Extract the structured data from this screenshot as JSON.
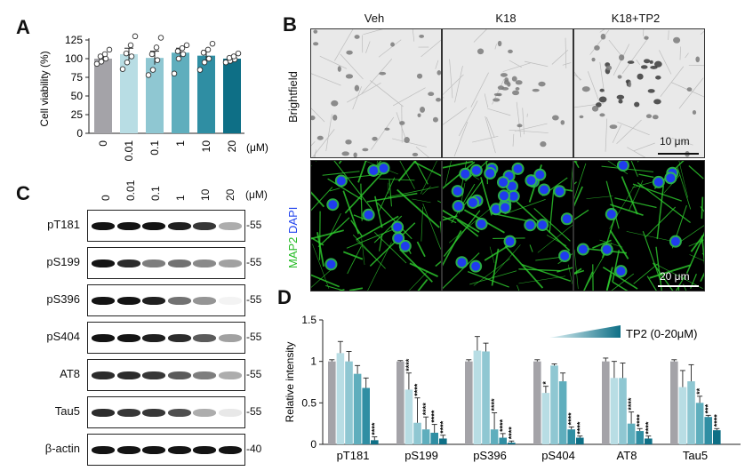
{
  "panels": {
    "a": "A",
    "b": "B",
    "c": "C",
    "d": "D"
  },
  "chart_a": {
    "type": "bar",
    "ylabel": "Cell viability (%)",
    "unit": "(μM)",
    "ylim": [
      0,
      125
    ],
    "yticks": [
      "0",
      "25",
      "50",
      "75",
      "100",
      "125"
    ],
    "categories": [
      "0",
      "0.01",
      "0.1",
      "1",
      "10",
      "20"
    ],
    "values": [
      100,
      106,
      101,
      108,
      104,
      100
    ],
    "errors": [
      5,
      8,
      9,
      6,
      7,
      3
    ],
    "points": [
      [
        93,
        96,
        100,
        103,
        106,
        112
      ],
      [
        86,
        95,
        103,
        107,
        118,
        130
      ],
      [
        78,
        85,
        98,
        106,
        115,
        128
      ],
      [
        80,
        100,
        106,
        110,
        114,
        118
      ],
      [
        85,
        95,
        100,
        108,
        112,
        120
      ],
      [
        95,
        97,
        99,
        101,
        103,
        107
      ]
    ],
    "colors": [
      "#a4a3a8",
      "#b8dde4",
      "#8fc7d2",
      "#5faebd",
      "#2f8ea3",
      "#0e6f86"
    ]
  },
  "panel_b": {
    "columns": [
      "Veh",
      "K18",
      "K18+TP2"
    ],
    "rows": [
      "Brightfield",
      "MAP2 DAPI"
    ],
    "row_label_1": "Brightfield",
    "row_label_2a": "MAP2",
    "row_label_2b": "DAPI",
    "scale_top": "10 μm",
    "scale_bottom": "20 μm",
    "map2_color": "#33cc33",
    "dapi_color": "#2244ee"
  },
  "panel_c": {
    "lanes": [
      "0",
      "0.01",
      "0.1",
      "1",
      "10",
      "20"
    ],
    "unit": "(μM)",
    "blots": [
      {
        "label": "pT181",
        "mw": "-55",
        "levels": [
          1.0,
          1.0,
          1.0,
          0.95,
          0.85,
          0.35
        ]
      },
      {
        "label": "pS199",
        "mw": "-55",
        "levels": [
          1.0,
          0.9,
          0.55,
          0.6,
          0.5,
          0.4
        ]
      },
      {
        "label": "pS396",
        "mw": "-55",
        "levels": [
          1.0,
          1.0,
          0.95,
          0.6,
          0.45,
          0.05
        ]
      },
      {
        "label": "pS404",
        "mw": "-55",
        "levels": [
          1.0,
          1.0,
          0.95,
          0.9,
          0.7,
          0.4
        ]
      },
      {
        "label": "AT8",
        "mw": "-55",
        "levels": [
          0.9,
          0.9,
          0.85,
          0.7,
          0.55,
          0.35
        ]
      },
      {
        "label": "Tau5",
        "mw": "-55",
        "levels": [
          0.9,
          0.85,
          0.85,
          0.75,
          0.35,
          0.1
        ]
      },
      {
        "label": "β-actin",
        "mw": "-40",
        "levels": [
          1.0,
          1.0,
          1.0,
          1.0,
          1.0,
          1.0
        ]
      }
    ]
  },
  "chart_d": {
    "type": "bar",
    "ylabel": "Relative intensity",
    "legend": "TP2 (0-20μM)",
    "ylim": [
      0,
      1.5
    ],
    "yticks": [
      "0",
      "0.5",
      "1",
      "1.5"
    ],
    "groups": [
      "pT181",
      "pS199",
      "pS396",
      "pS404",
      "AT8",
      "Tau5"
    ],
    "colors": [
      "#a4a3a8",
      "#b8dde4",
      "#8fc7d2",
      "#5faebd",
      "#2f8ea3",
      "#0e6f86"
    ],
    "values": [
      [
        1.0,
        1.1,
        1.0,
        0.85,
        0.68,
        0.05
      ],
      [
        1.0,
        0.66,
        0.26,
        0.18,
        0.14,
        0.07
      ],
      [
        1.0,
        1.13,
        1.12,
        0.18,
        0.08,
        0.02
      ],
      [
        1.0,
        0.62,
        0.95,
        0.76,
        0.18,
        0.08
      ],
      [
        1.0,
        0.8,
        0.8,
        0.25,
        0.16,
        0.07
      ],
      [
        1.0,
        0.69,
        0.76,
        0.5,
        0.33,
        0.17
      ]
    ],
    "errors": [
      [
        0.02,
        0.14,
        0.12,
        0.1,
        0.12,
        0.04
      ],
      [
        0.01,
        0.2,
        0.3,
        0.15,
        0.1,
        0.04
      ],
      [
        0.02,
        0.17,
        0.1,
        0.2,
        0.05,
        0.02
      ],
      [
        0.02,
        0.08,
        0.02,
        0.1,
        0.03,
        0.02
      ],
      [
        0.04,
        0.2,
        0.18,
        0.14,
        0.03,
        0.03
      ],
      [
        0.02,
        0.2,
        0.2,
        0.08,
        0.02,
        0.02
      ]
    ],
    "stars": [
      [
        "",
        "",
        "",
        "",
        "",
        "****"
      ],
      [
        "",
        "****",
        "****",
        "****",
        "****",
        "****"
      ],
      [
        "",
        "",
        "",
        "****",
        "****",
        "****"
      ],
      [
        "",
        "*",
        "",
        "",
        "****",
        "****"
      ],
      [
        "",
        "",
        "",
        "****",
        "****",
        "****"
      ],
      [
        "",
        "",
        "",
        "**",
        "***",
        "****"
      ]
    ]
  }
}
